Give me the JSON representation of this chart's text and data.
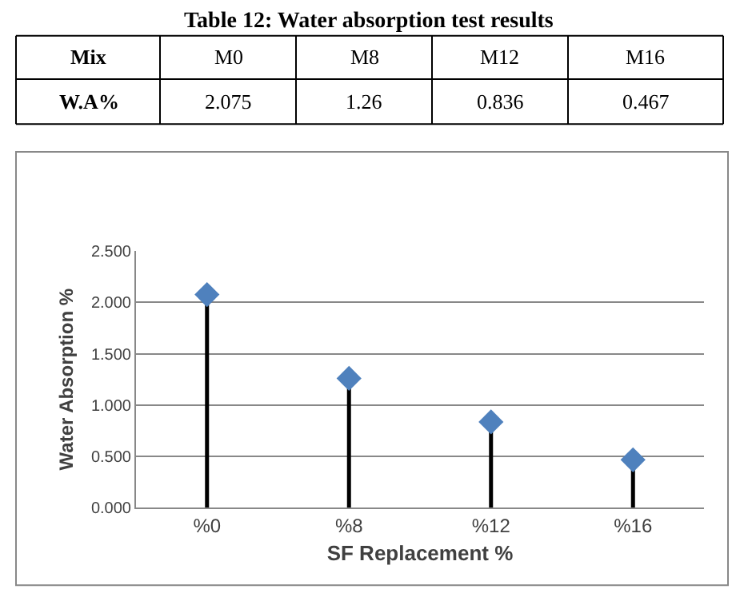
{
  "chart_data": {
    "type": "lollipop",
    "title": "Table 12: Water absorption test results",
    "annotations": [
      "Mix",
      "M0",
      "M8",
      "M12",
      "M16",
      "W.A%",
      "2.075",
      "1.26",
      "0.836",
      "0.467"
    ],
    "categories": [
      "%0",
      "%8",
      "%12",
      "%16"
    ],
    "series": [
      {
        "color": "#4f81bd",
        "values": [
          2.075,
          1.26,
          0.836,
          0.467
        ]
      }
    ],
    "xlabel": "SF Replacement %",
    "ylabel": "Water Absorption %",
    "ylim": [
      0,
      2.5
    ],
    "yticks": [
      {
        "value": 0,
        "label": "0.000"
      },
      {
        "value": 0.5,
        "label": "0.500"
      },
      {
        "value": 1,
        "label": "1.000"
      },
      {
        "value": 1.5,
        "label": "1.500"
      },
      {
        "value": 2,
        "label": "2.000"
      },
      {
        "value": 2.5,
        "label": "2.500"
      }
    ],
    "grid": "y",
    "marker": "diamond"
  }
}
